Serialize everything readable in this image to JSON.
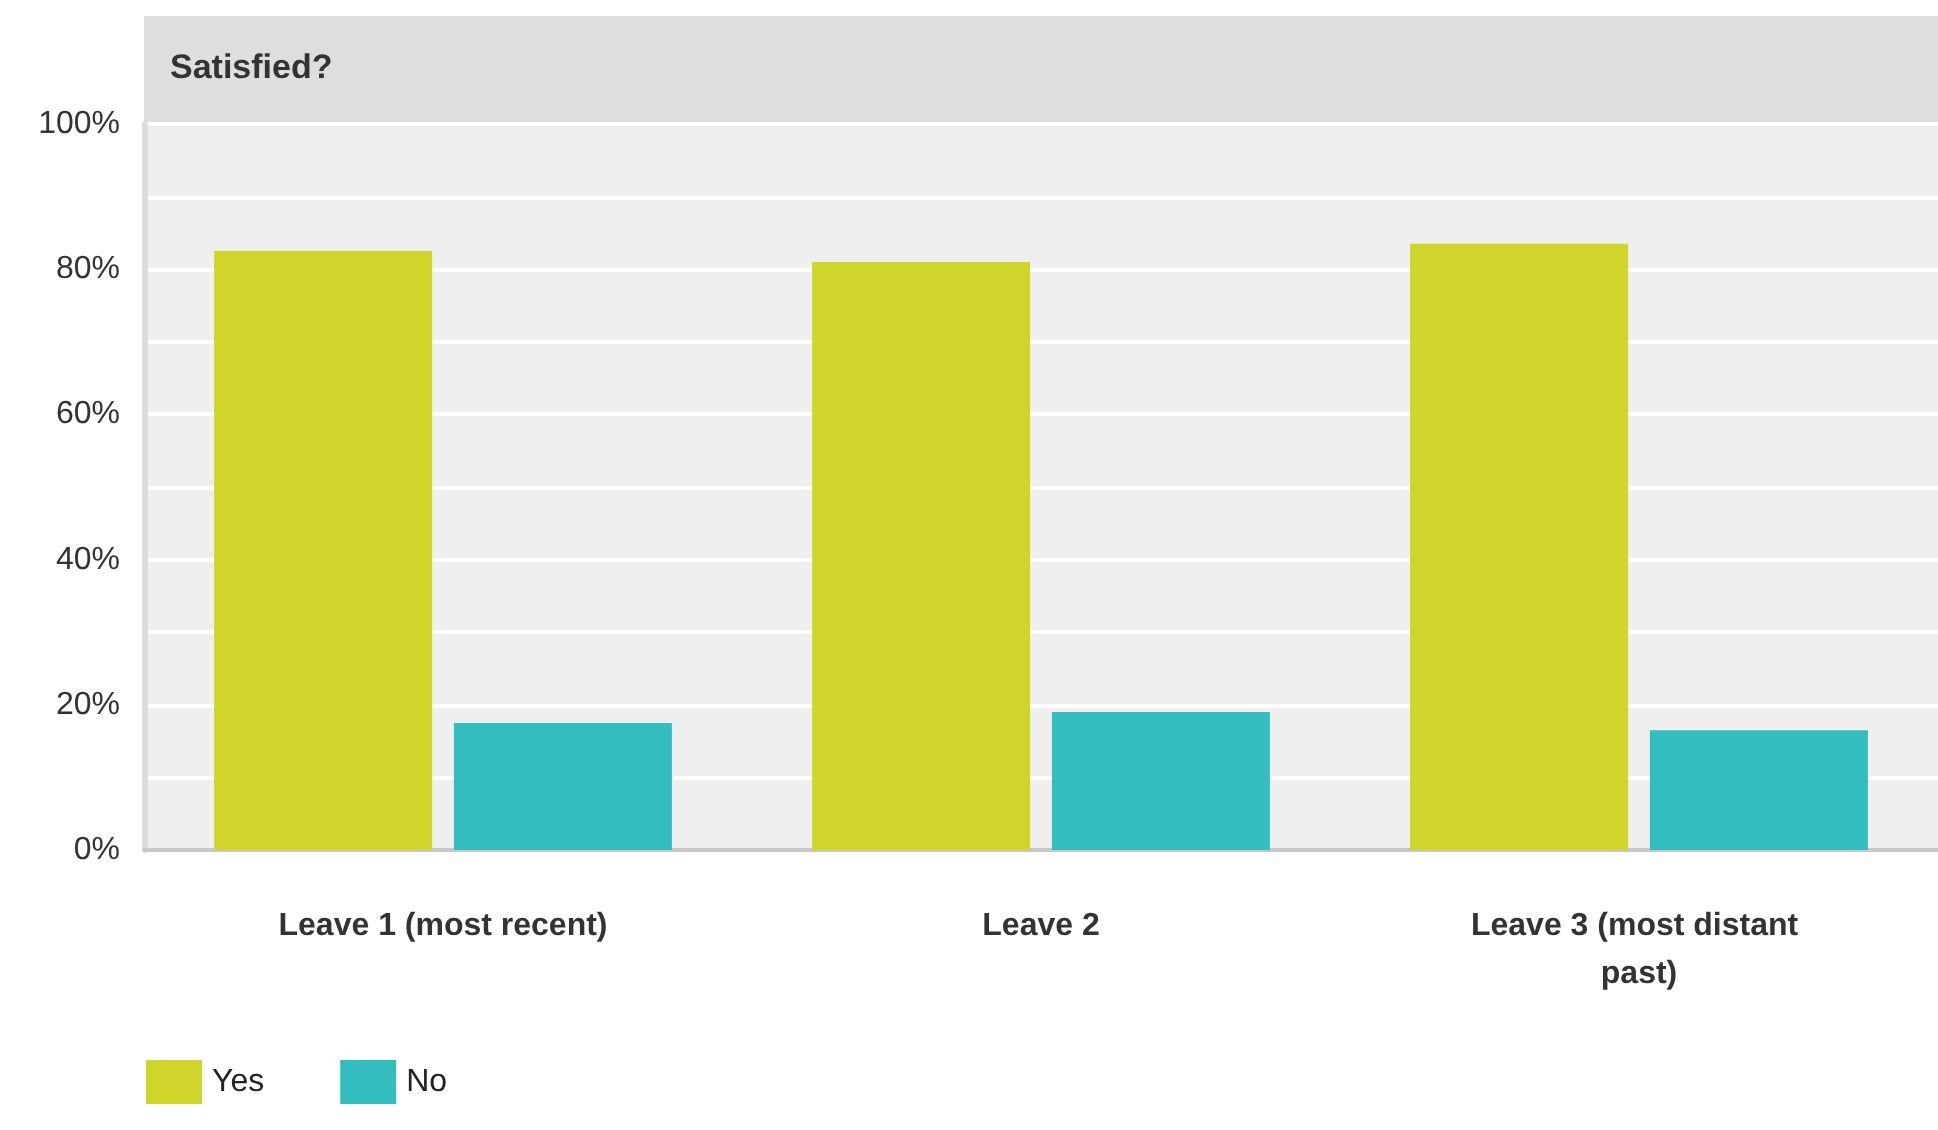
{
  "chart_data": {
    "type": "bar",
    "title": "Satisfied?",
    "categories": [
      "Leave 1 (most recent)",
      "Leave 2",
      "Leave 3 (most distant past)"
    ],
    "series": [
      {
        "name": "Yes",
        "color": "#cfd52a",
        "values": [
          82.5,
          81,
          83.5
        ]
      },
      {
        "name": "No",
        "color": "#33bdbf",
        "values": [
          17.5,
          19,
          16.5
        ]
      }
    ],
    "ylim": [
      0,
      100
    ],
    "yticks": [
      {
        "value": 0,
        "label": "0%"
      },
      {
        "value": 10,
        "label": null
      },
      {
        "value": 20,
        "label": "20%"
      },
      {
        "value": 30,
        "label": null
      },
      {
        "value": 40,
        "label": "40%"
      },
      {
        "value": 50,
        "label": null
      },
      {
        "value": 60,
        "label": "60%"
      },
      {
        "value": 70,
        "label": null
      },
      {
        "value": 80,
        "label": "80%"
      },
      {
        "value": 90,
        "label": null
      },
      {
        "value": 100,
        "label": "100%"
      }
    ],
    "grid": "y",
    "legend": "bottom left"
  }
}
